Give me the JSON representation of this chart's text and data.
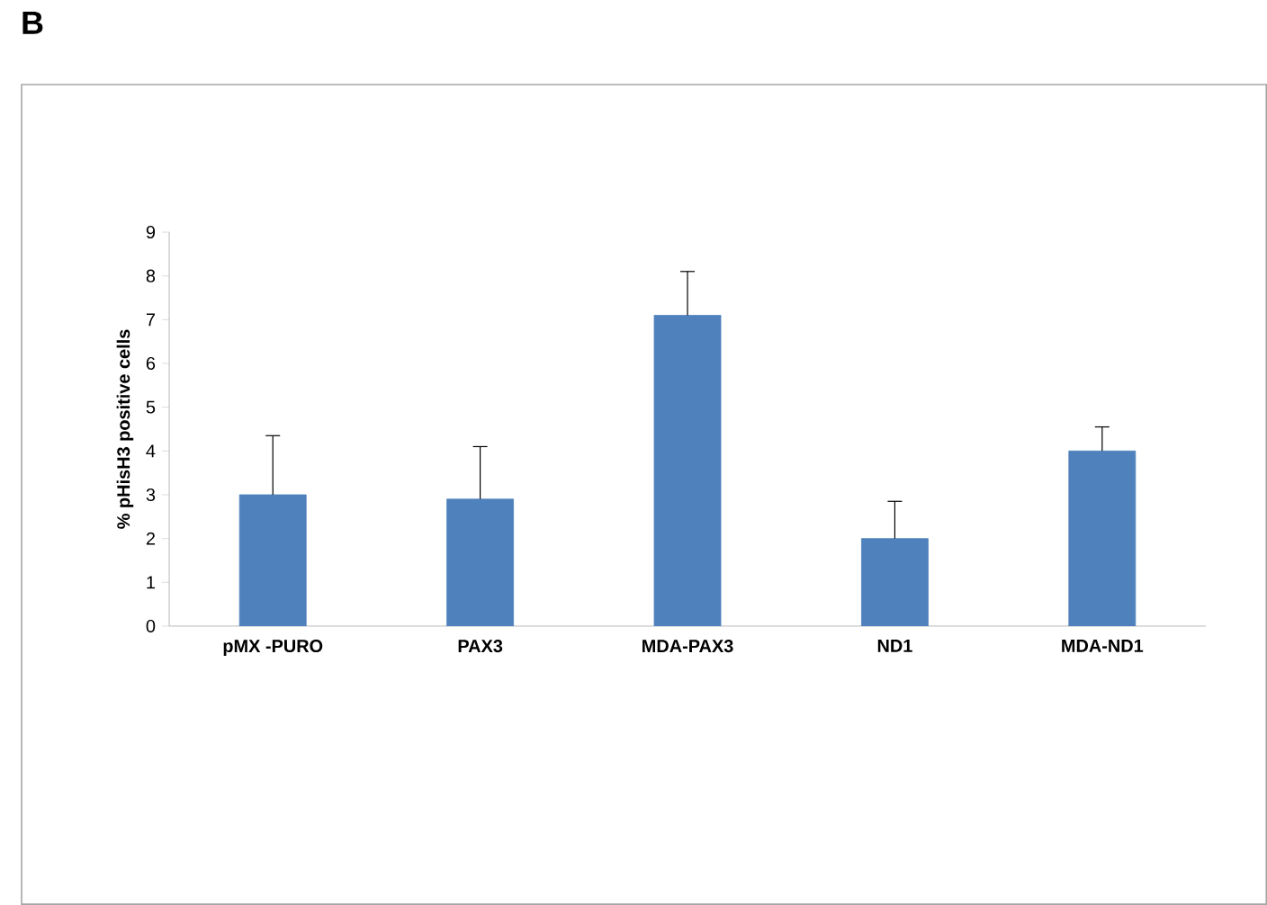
{
  "chart_data": {
    "type": "bar",
    "ylabel": "% pHisH3 positive cells",
    "annotations": [
      "B"
    ],
    "categories": [
      "pMX -PURO",
      "PAX3",
      "MDA-PAX3",
      "ND1",
      "MDA-ND1"
    ],
    "values": [
      3.0,
      2.9,
      7.1,
      2.0,
      4.0
    ],
    "errors": [
      [
        3.0,
        4.35
      ],
      [
        2.9,
        4.1
      ],
      [
        7.1,
        8.1
      ],
      [
        2.0,
        2.85
      ],
      [
        4.0,
        4.55
      ]
    ],
    "color": "#4f81bd",
    "ylim": [
      0,
      9
    ],
    "yticks": [
      0,
      1,
      2,
      3,
      4,
      5,
      6,
      7,
      8,
      9
    ]
  }
}
